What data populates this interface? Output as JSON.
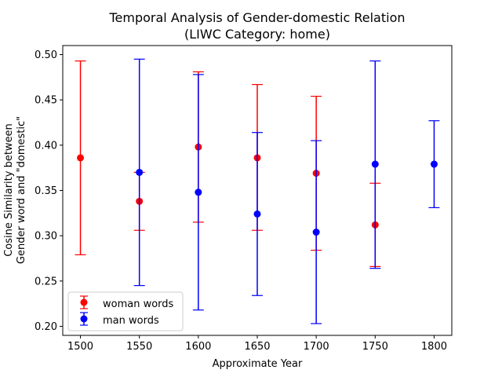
{
  "chart_data": {
    "type": "scatter",
    "title": [
      "Temporal Analysis of Gender-domestic Relation",
      "(LIWC Category: home)"
    ],
    "xlabel": "Approximate Year",
    "ylabel": [
      "Cosine Similarity between",
      "Gender word and \"domestic\""
    ],
    "xlim": [
      1485,
      1815
    ],
    "ylim": [
      0.19,
      0.51
    ],
    "xticks": [
      1500,
      1550,
      1600,
      1650,
      1700,
      1750,
      1800
    ],
    "yticks": [
      0.2,
      0.25,
      0.3,
      0.35,
      0.4,
      0.45,
      0.5
    ],
    "ytick_labels": [
      "0.20",
      "0.25",
      "0.30",
      "0.35",
      "0.40",
      "0.45",
      "0.50"
    ],
    "grid": false,
    "legend_position": "lower-left",
    "series": [
      {
        "name": "woman words",
        "color": "#ff0000",
        "points": [
          {
            "x": 1500,
            "y": 0.386,
            "lo": 0.279,
            "hi": 0.493
          },
          {
            "x": 1550,
            "y": 0.338,
            "lo": 0.306,
            "hi": 0.37
          },
          {
            "x": 1600,
            "y": 0.398,
            "lo": 0.315,
            "hi": 0.481
          },
          {
            "x": 1650,
            "y": 0.386,
            "lo": 0.306,
            "hi": 0.467
          },
          {
            "x": 1700,
            "y": 0.369,
            "lo": 0.284,
            "hi": 0.454
          },
          {
            "x": 1750,
            "y": 0.312,
            "lo": 0.266,
            "hi": 0.358
          }
        ]
      },
      {
        "name": "man words",
        "color": "#0000ff",
        "points": [
          {
            "x": 1550,
            "y": 0.37,
            "lo": 0.245,
            "hi": 0.495
          },
          {
            "x": 1600,
            "y": 0.348,
            "lo": 0.218,
            "hi": 0.478
          },
          {
            "x": 1650,
            "y": 0.324,
            "lo": 0.234,
            "hi": 0.414
          },
          {
            "x": 1700,
            "y": 0.304,
            "lo": 0.203,
            "hi": 0.405
          },
          {
            "x": 1750,
            "y": 0.379,
            "lo": 0.264,
            "hi": 0.493
          },
          {
            "x": 1800,
            "y": 0.379,
            "lo": 0.331,
            "hi": 0.427
          }
        ]
      }
    ]
  }
}
